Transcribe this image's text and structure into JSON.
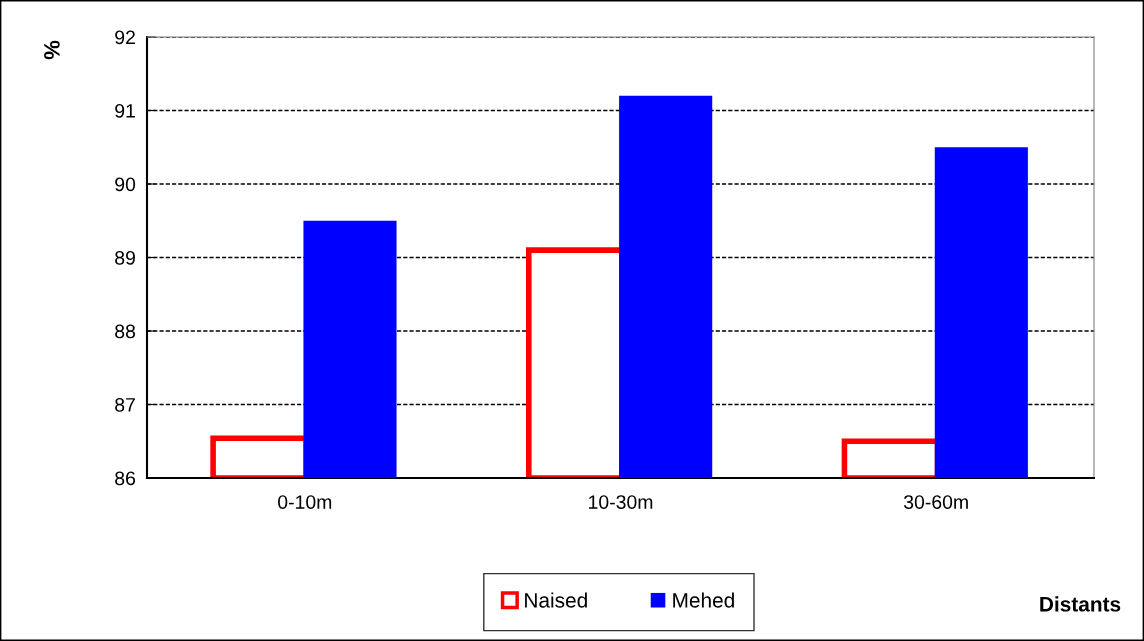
{
  "chart_data": {
    "type": "bar",
    "xlabel": "Distants",
    "ylabel": "%",
    "categories": [
      "0-10m",
      "10-30m",
      "30-60m"
    ],
    "series": [
      {
        "name": "Naised",
        "color": "#ff0000",
        "values": [
          86.54,
          89.1,
          86.5
        ]
      },
      {
        "name": "Mehed",
        "color": "#0000ff",
        "values": [
          89.5,
          91.2,
          90.5
        ]
      }
    ],
    "ylim": [
      86,
      92
    ],
    "yticks": [
      86,
      87,
      88,
      89,
      90,
      91,
      92
    ],
    "grid": "y",
    "legend": "bottom"
  }
}
